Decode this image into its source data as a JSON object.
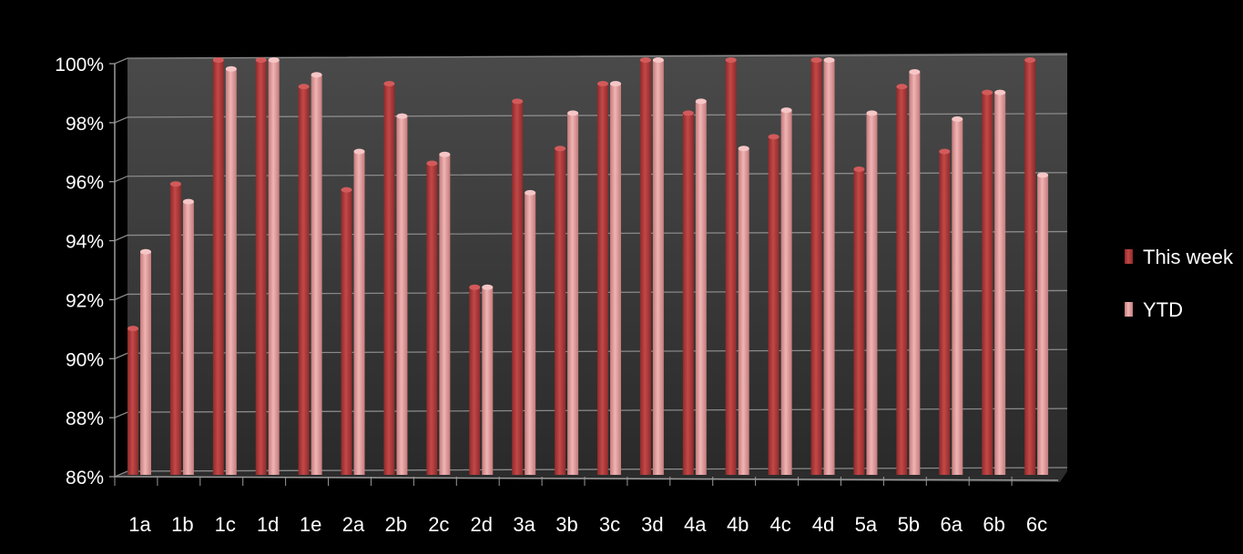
{
  "chart_data": {
    "type": "bar",
    "title": "",
    "xlabel": "",
    "ylabel": "",
    "ylim": [
      86,
      100
    ],
    "y_ticks": [
      "86%",
      "88%",
      "90%",
      "92%",
      "94%",
      "96%",
      "98%",
      "100%"
    ],
    "y_tick_values": [
      86,
      88,
      90,
      92,
      94,
      96,
      98,
      100
    ],
    "grid": true,
    "legend_position": "right",
    "categories": [
      "1a",
      "1b",
      "1c",
      "1d",
      "1e",
      "2a",
      "2b",
      "2c",
      "2d",
      "3a",
      "3b",
      "3c",
      "3d",
      "4a",
      "4b",
      "4c",
      "4d",
      "5a",
      "5b",
      "6a",
      "6b",
      "6c"
    ],
    "series": [
      {
        "name": "This week",
        "color": "#b63c3c",
        "values": [
          90.9,
          95.8,
          100,
          100,
          99.1,
          95.6,
          99.2,
          96.5,
          92.3,
          98.6,
          97.0,
          99.2,
          100,
          98.2,
          100,
          97.4,
          100,
          96.3,
          99.1,
          96.9,
          98.9,
          100
        ]
      },
      {
        "name": "YTD",
        "color": "#e8a0a0",
        "values": [
          93.5,
          95.2,
          99.7,
          100,
          99.5,
          96.9,
          98.1,
          96.8,
          92.3,
          95.5,
          98.2,
          99.2,
          100,
          98.6,
          97.0,
          98.3,
          100,
          98.2,
          99.6,
          98.0,
          98.9,
          96.1
        ]
      }
    ]
  },
  "colors": {
    "background": "#000000",
    "plot_wall": "#3a3a3a",
    "gridline": "#8a8a8a"
  }
}
